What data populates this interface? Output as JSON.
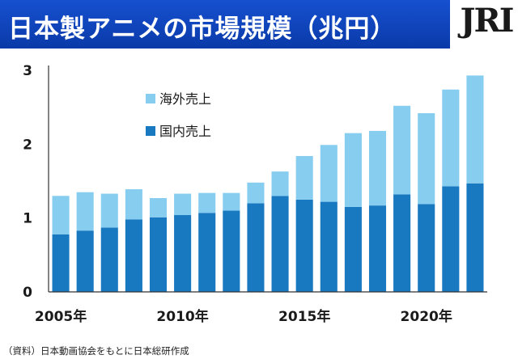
{
  "header": {
    "title": "日本製アニメの市場規模（兆円）",
    "logo": "JRI"
  },
  "footer": {
    "source": "（資料）日本動画協会をもとに日本総研作成"
  },
  "colors": {
    "banner": "#0d3fb0",
    "overseas": "#87cdf0",
    "domestic": "#1878c0"
  },
  "chart_data": {
    "type": "bar",
    "stacked": true,
    "title": "日本製アニメの市場規模（兆円）",
    "xlabel": "",
    "ylabel": "",
    "ylim": [
      0,
      3
    ],
    "yticks": [
      "0",
      "1",
      "2",
      "3"
    ],
    "grid": false,
    "legend_position": "top-left",
    "categories": [
      "2005",
      "2006",
      "2007",
      "2008",
      "2009",
      "2010",
      "2011",
      "2012",
      "2013",
      "2014",
      "2015",
      "2016",
      "2017",
      "2018",
      "2019",
      "2020",
      "2021",
      "2022"
    ],
    "xtick_labels": [
      {
        "category": "2005",
        "label": "2005年"
      },
      {
        "category": "2010",
        "label": "2010年"
      },
      {
        "category": "2015",
        "label": "2015年"
      },
      {
        "category": "2020",
        "label": "2020年"
      }
    ],
    "series": [
      {
        "name": "国内売上",
        "color": "#1878c0",
        "values": [
          0.78,
          0.83,
          0.87,
          0.98,
          1.01,
          1.04,
          1.07,
          1.1,
          1.2,
          1.3,
          1.25,
          1.22,
          1.15,
          1.17,
          1.32,
          1.19,
          1.43,
          1.47
        ]
      },
      {
        "name": "海外売上",
        "color": "#87cdf0",
        "values": [
          0.52,
          0.52,
          0.46,
          0.41,
          0.26,
          0.29,
          0.27,
          0.24,
          0.28,
          0.33,
          0.59,
          0.77,
          1.0,
          1.01,
          1.2,
          1.23,
          1.31,
          1.46
        ]
      }
    ],
    "legend_order": [
      "海外売上",
      "国内売上"
    ]
  }
}
